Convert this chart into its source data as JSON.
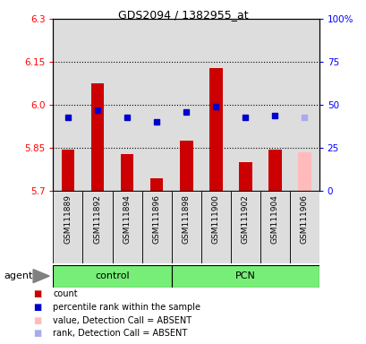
{
  "title": "GDS2094 / 1382955_at",
  "samples": [
    "GSM111889",
    "GSM111892",
    "GSM111894",
    "GSM111896",
    "GSM111898",
    "GSM111900",
    "GSM111902",
    "GSM111904",
    "GSM111906"
  ],
  "bar_values": [
    5.845,
    6.075,
    5.83,
    5.745,
    5.875,
    6.13,
    5.8,
    5.845,
    5.835
  ],
  "bar_colors": [
    "#cc0000",
    "#cc0000",
    "#cc0000",
    "#cc0000",
    "#cc0000",
    "#cc0000",
    "#cc0000",
    "#cc0000",
    "#ffbbbb"
  ],
  "dot_values": [
    43,
    47,
    43,
    40,
    46,
    49,
    43,
    44,
    43
  ],
  "dot_colors": [
    "#0000cc",
    "#0000cc",
    "#0000cc",
    "#0000cc",
    "#0000cc",
    "#0000cc",
    "#0000cc",
    "#0000cc",
    "#aaaaee"
  ],
  "ylim_left": [
    5.7,
    6.3
  ],
  "ylim_right": [
    0,
    100
  ],
  "yticks_left": [
    5.7,
    5.85,
    6.0,
    6.15,
    6.3
  ],
  "yticks_right": [
    0,
    25,
    50,
    75,
    100
  ],
  "hlines": [
    5.85,
    6.0,
    6.15
  ],
  "groups": [
    {
      "label": "control",
      "start": 0,
      "end": 3,
      "color": "#77ee77"
    },
    {
      "label": "PCN",
      "start": 4,
      "end": 8,
      "color": "#77ee77"
    }
  ],
  "col_bg": "#dddddd",
  "plot_bg": "#ffffff",
  "legend_items": [
    {
      "color": "#cc0000",
      "label": "count"
    },
    {
      "color": "#0000cc",
      "label": "percentile rank within the sample"
    },
    {
      "color": "#ffbbbb",
      "label": "value, Detection Call = ABSENT"
    },
    {
      "color": "#aaaaee",
      "label": "rank, Detection Call = ABSENT"
    }
  ]
}
